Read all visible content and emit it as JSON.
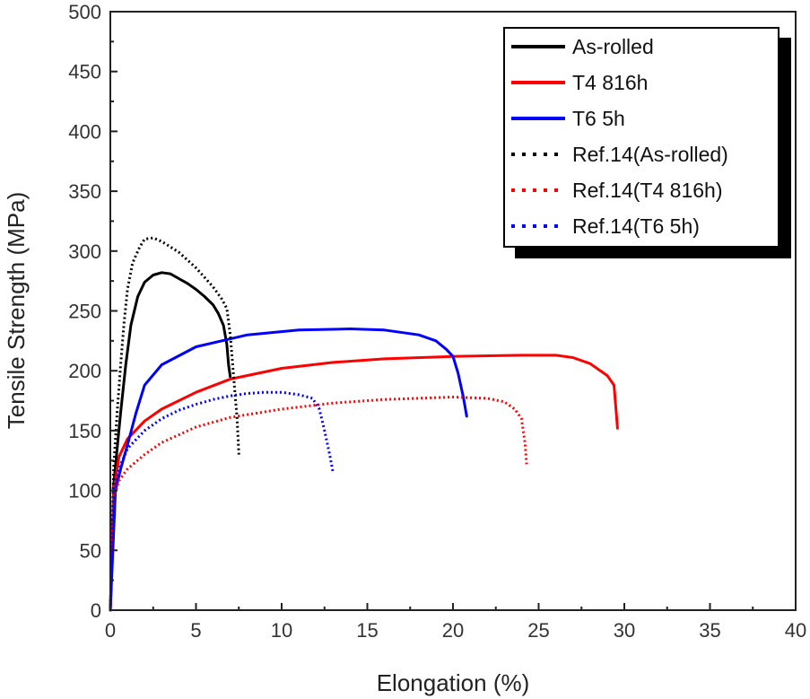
{
  "chart_data": {
    "type": "line",
    "xlabel": "Elongation (%)",
    "ylabel": "Tensile Strength (MPa)",
    "xlim": [
      0,
      40
    ],
    "ylim": [
      0,
      500
    ],
    "xticks": [
      0,
      5,
      10,
      15,
      20,
      25,
      30,
      35,
      40
    ],
    "yticks": [
      0,
      50,
      100,
      150,
      200,
      250,
      300,
      350,
      400,
      450,
      500
    ],
    "grid": false,
    "legend_position": "top-right",
    "series": [
      {
        "name": "As-rolled",
        "color": "#000000",
        "style": "solid",
        "x": [
          0,
          0.2,
          0.4,
          0.6,
          0.9,
          1.2,
          1.6,
          2.0,
          2.5,
          3.0,
          3.5,
          4.0,
          4.5,
          5.0,
          5.5,
          6.0,
          6.3,
          6.6,
          6.8,
          6.9,
          7.0
        ],
        "y": [
          0,
          105,
          135,
          165,
          205,
          238,
          262,
          274,
          280,
          282,
          281,
          277,
          273,
          268,
          262,
          255,
          248,
          238,
          222,
          205,
          195
        ]
      },
      {
        "name": "T4 816h",
        "color": "#ff0000",
        "style": "solid",
        "x": [
          0,
          0.2,
          0.5,
          1.0,
          2.0,
          3.0,
          5.0,
          7.0,
          10.0,
          13.0,
          16.0,
          20.0,
          24.0,
          26.0,
          27.0,
          28.0,
          29.0,
          29.4,
          29.6
        ],
        "y": [
          0,
          100,
          128,
          143,
          158,
          168,
          182,
          193,
          202,
          207,
          210,
          212,
          213,
          213,
          211,
          206,
          196,
          188,
          152
        ]
      },
      {
        "name": "T6 5h",
        "color": "#0000ff",
        "style": "solid",
        "x": [
          0,
          0.3,
          0.6,
          1.0,
          1.5,
          2.0,
          3.0,
          5.0,
          8.0,
          11.0,
          14.0,
          16.0,
          18.0,
          19.0,
          19.6,
          20.0,
          20.3,
          20.6,
          20.8
        ],
        "y": [
          0,
          100,
          118,
          138,
          165,
          188,
          205,
          220,
          230,
          234,
          235,
          234,
          230,
          225,
          218,
          212,
          198,
          178,
          162
        ]
      },
      {
        "name": "Ref.14(As-rolled)",
        "color": "#000000",
        "style": "dotted",
        "x": [
          0,
          0.2,
          0.4,
          0.6,
          0.8,
          1.0,
          1.3,
          1.7,
          2.0,
          2.5,
          3.0,
          4.0,
          5.0,
          6.0,
          6.5,
          6.8,
          7.0,
          7.2,
          7.4,
          7.5
        ],
        "y": [
          0,
          120,
          165,
          205,
          240,
          268,
          290,
          303,
          310,
          311,
          308,
          299,
          286,
          270,
          260,
          252,
          230,
          195,
          160,
          130
        ]
      },
      {
        "name": "Ref.14(T4 816h)",
        "color": "#ff0000",
        "style": "dotted",
        "x": [
          0,
          0.2,
          0.5,
          1.0,
          2.0,
          3.0,
          5.0,
          7.0,
          10.0,
          13.0,
          16.0,
          20.0,
          22.0,
          23.0,
          23.6,
          24.0,
          24.2,
          24.3
        ],
        "y": [
          0,
          95,
          108,
          118,
          130,
          140,
          153,
          161,
          168,
          173,
          176,
          178,
          177,
          174,
          168,
          160,
          140,
          122
        ]
      },
      {
        "name": "Ref.14(T6 5h)",
        "color": "#0000ff",
        "style": "dotted",
        "x": [
          0,
          0.2,
          0.5,
          1.0,
          2.0,
          3.0,
          4.0,
          5.0,
          6.0,
          7.0,
          8.0,
          9.0,
          10.0,
          11.0,
          11.8,
          12.2,
          12.5,
          12.8,
          13.0
        ],
        "y": [
          0,
          100,
          118,
          135,
          150,
          160,
          167,
          172,
          176,
          179,
          181,
          182,
          182,
          180,
          177,
          168,
          150,
          130,
          115
        ]
      }
    ]
  }
}
